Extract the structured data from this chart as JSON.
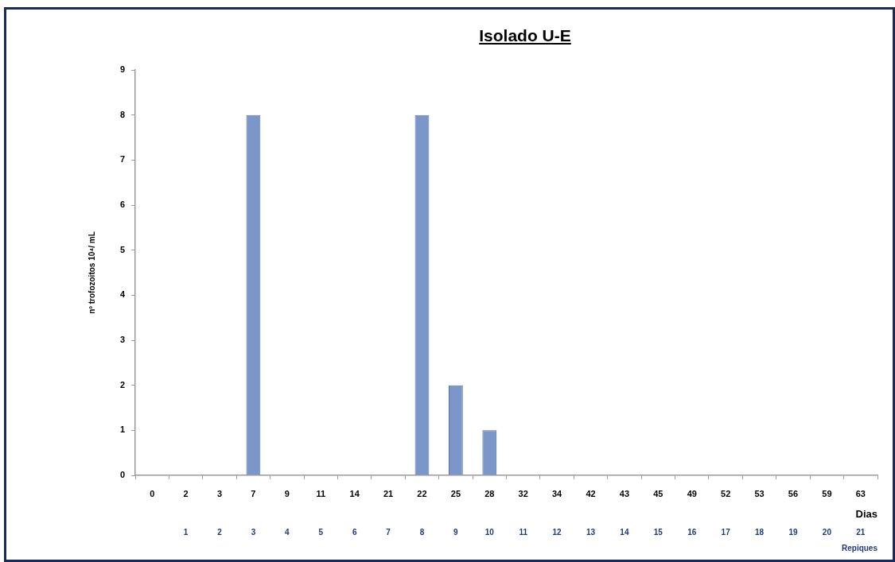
{
  "chart_data": {
    "type": "bar",
    "title": "Isolado U-E",
    "xlabel": "Dias",
    "ylabel": "nº trofozoitos 10⁴/ mL",
    "x2label": "Repiques",
    "categories": [
      "0",
      "2",
      "3",
      "7",
      "9",
      "11",
      "14",
      "21",
      "22",
      "25",
      "28",
      "32",
      "34",
      "42",
      "43",
      "45",
      "49",
      "52",
      "53",
      "56",
      "59",
      "63"
    ],
    "values": [
      0,
      0,
      0,
      8,
      0,
      0,
      0,
      0,
      8,
      2,
      1,
      0,
      0,
      0,
      0,
      0,
      0,
      0,
      0,
      0,
      0,
      0
    ],
    "color": "#7b97c9",
    "ylim": [
      0,
      9
    ],
    "yticks": [
      0,
      1,
      2,
      3,
      4,
      5,
      6,
      7,
      8,
      9
    ],
    "x2lim": [
      -0.5,
      21.5
    ],
    "x2ticks": [
      1,
      2,
      3,
      4,
      5,
      6,
      7,
      8,
      9,
      10,
      11,
      12,
      13,
      14,
      15,
      16,
      17,
      18,
      19,
      20,
      21
    ]
  }
}
